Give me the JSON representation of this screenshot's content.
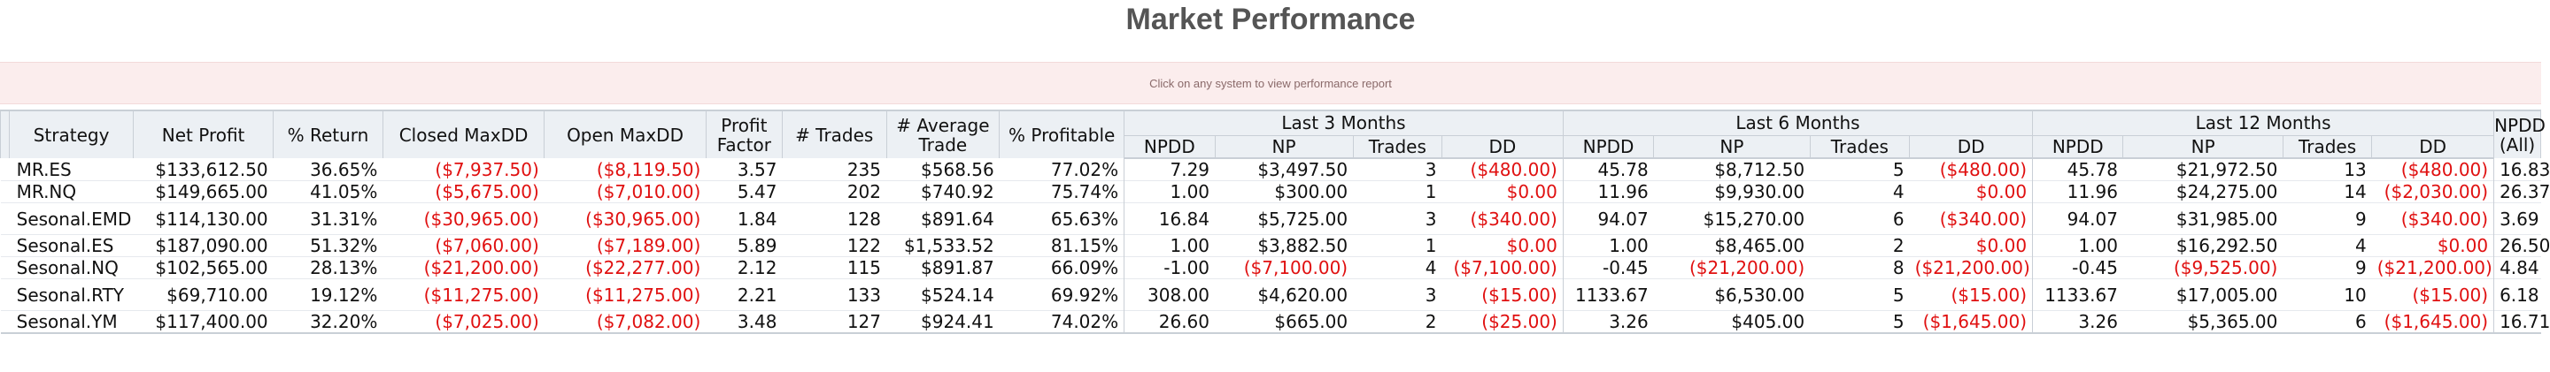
{
  "page": {
    "title": "Market Performance",
    "banner_text": "Click on any system to view performance report"
  },
  "table": {
    "columns": [
      "Strategy",
      "Net Profit",
      "% Return",
      "Closed MaxDD",
      "Open MaxDD",
      "Profit Factor",
      "# Trades",
      "# Average Trade",
      "% Profitable"
    ],
    "groups": [
      "Last 3 Months",
      "Last 6 Months",
      "Last 12 Months"
    ],
    "group_subcolumns": [
      "NPDD",
      "NP",
      "Trades",
      "DD"
    ],
    "last_column": "NPDD (All)",
    "rows": [
      {
        "strategy": "MR.ES",
        "net_profit": "$133,612.50",
        "pct_return": "36.65%",
        "closed_maxdd": "($7,937.50)",
        "open_maxdd": "($8,119.50)",
        "profit_factor": "3.57",
        "trades": "235",
        "avg_trade": "$568.56",
        "pct_profitable": "77.02%",
        "m3_npdd": "7.29",
        "m3_np": "$3,497.50",
        "m3_trades": "3",
        "m3_dd": "($480.00)",
        "m6_npdd": "45.78",
        "m6_np": "$8,712.50",
        "m6_trades": "5",
        "m6_dd": "($480.00)",
        "m12_npdd": "45.78",
        "m12_np": "$21,972.50",
        "m12_trades": "13",
        "m12_dd": "($480.00)",
        "npdd_all": "16.83"
      },
      {
        "strategy": "MR.NQ",
        "net_profit": "$149,665.00",
        "pct_return": "41.05%",
        "closed_maxdd": "($5,675.00)",
        "open_maxdd": "($7,010.00)",
        "profit_factor": "5.47",
        "trades": "202",
        "avg_trade": "$740.92",
        "pct_profitable": "75.74%",
        "m3_npdd": "1.00",
        "m3_np": "$300.00",
        "m3_trades": "1",
        "m3_dd": "$0.00",
        "m6_npdd": "11.96",
        "m6_np": "$9,930.00",
        "m6_trades": "4",
        "m6_dd": "$0.00",
        "m12_npdd": "11.96",
        "m12_np": "$24,275.00",
        "m12_trades": "14",
        "m12_dd": "($2,030.00)",
        "npdd_all": "26.37"
      },
      {
        "strategy": "Sesonal.EMD",
        "net_profit": "$114,130.00",
        "pct_return": "31.31%",
        "closed_maxdd": "($30,965.00)",
        "open_maxdd": "($30,965.00)",
        "profit_factor": "1.84",
        "trades": "128",
        "avg_trade": "$891.64",
        "pct_profitable": "65.63%",
        "m3_npdd": "16.84",
        "m3_np": "$5,725.00",
        "m3_trades": "3",
        "m3_dd": "($340.00)",
        "m6_npdd": "94.07",
        "m6_np": "$15,270.00",
        "m6_trades": "6",
        "m6_dd": "($340.00)",
        "m12_npdd": "94.07",
        "m12_np": "$31,985.00",
        "m12_trades": "9",
        "m12_dd": "($340.00)",
        "npdd_all": "3.69"
      },
      {
        "strategy": "Sesonal.ES",
        "net_profit": "$187,090.00",
        "pct_return": "51.32%",
        "closed_maxdd": "($7,060.00)",
        "open_maxdd": "($7,189.00)",
        "profit_factor": "5.89",
        "trades": "122",
        "avg_trade": "$1,533.52",
        "pct_profitable": "81.15%",
        "m3_npdd": "1.00",
        "m3_np": "$3,882.50",
        "m3_trades": "1",
        "m3_dd": "$0.00",
        "m6_npdd": "1.00",
        "m6_np": "$8,465.00",
        "m6_trades": "2",
        "m6_dd": "$0.00",
        "m12_npdd": "1.00",
        "m12_np": "$16,292.50",
        "m12_trades": "4",
        "m12_dd": "$0.00",
        "npdd_all": "26.50"
      },
      {
        "strategy": "Sesonal.NQ",
        "net_profit": "$102,565.00",
        "pct_return": "28.13%",
        "closed_maxdd": "($21,200.00)",
        "open_maxdd": "($22,277.00)",
        "profit_factor": "2.12",
        "trades": "115",
        "avg_trade": "$891.87",
        "pct_profitable": "66.09%",
        "m3_npdd": "-1.00",
        "m3_np": "($7,100.00)",
        "m3_trades": "4",
        "m3_dd": "($7,100.00)",
        "m6_npdd": "-0.45",
        "m6_np": "($21,200.00)",
        "m6_trades": "8",
        "m6_dd": "($21,200.00)",
        "m12_npdd": "-0.45",
        "m12_np": "($9,525.00)",
        "m12_trades": "9",
        "m12_dd": "($21,200.00)",
        "npdd_all": "4.84"
      },
      {
        "strategy": "Sesonal.RTY",
        "net_profit": "$69,710.00",
        "pct_return": "19.12%",
        "closed_maxdd": "($11,275.00)",
        "open_maxdd": "($11,275.00)",
        "profit_factor": "2.21",
        "trades": "133",
        "avg_trade": "$524.14",
        "pct_profitable": "69.92%",
        "m3_npdd": "308.00",
        "m3_np": "$4,620.00",
        "m3_trades": "3",
        "m3_dd": "($15.00)",
        "m6_npdd": "1133.67",
        "m6_np": "$6,530.00",
        "m6_trades": "5",
        "m6_dd": "($15.00)",
        "m12_npdd": "1133.67",
        "m12_np": "$17,005.00",
        "m12_trades": "10",
        "m12_dd": "($15.00)",
        "npdd_all": "6.18"
      },
      {
        "strategy": "Sesonal.YM",
        "net_profit": "$117,400.00",
        "pct_return": "32.20%",
        "closed_maxdd": "($7,025.00)",
        "open_maxdd": "($7,082.00)",
        "profit_factor": "3.48",
        "trades": "127",
        "avg_trade": "$924.41",
        "pct_profitable": "74.02%",
        "m3_npdd": "26.60",
        "m3_np": "$665.00",
        "m3_trades": "2",
        "m3_dd": "($25.00)",
        "m6_npdd": "3.26",
        "m6_np": "$405.00",
        "m6_trades": "5",
        "m6_dd": "($1,645.00)",
        "m12_npdd": "3.26",
        "m12_np": "$5,365.00",
        "m12_trades": "6",
        "m12_dd": "($1,645.00)",
        "npdd_all": "16.71"
      }
    ],
    "negative_color": "#e01010"
  }
}
